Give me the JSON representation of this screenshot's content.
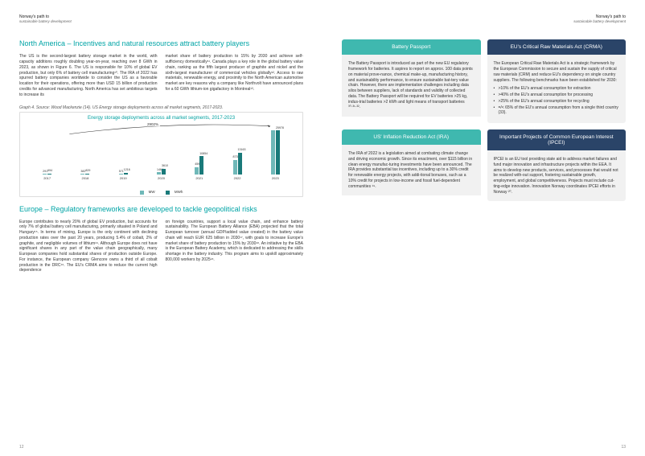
{
  "header": {
    "line1": "Norway's path to",
    "line2": "sustainable battery development"
  },
  "left": {
    "h_na": "North America – Incentives and natural resources attract battery players",
    "na_col1": "The US is the second-largest battery storage market in the world, with capacity additions roughly doubling year-on-year, reaching over 8 GWh in 2023, as shown in Figure 6. The US is responsible for 10% of global EV production, but only 6% of battery cell manufacturing¹⁰. The IRA of 2022 has spurred battery companies worldwide to consider the US as a favorable location for their operations, offering more than USD 15 billion of production credits for advanced manufacturing. North America has set ambitious targets to increase its",
    "na_col2": "market share of battery production to 15% by 2030 and achieve self-sufficiency domestically¹¹. Canada plays a key role in the global battery value chain, ranking as the fifth largest producer of graphite and nickel and the sixth-largest manufacturer of commercial vehicles globally¹². Access to raw materials, renewable energy, and proximity to the North American automotive market are key reasons why a company like Northvolt have announced plans for a 60 GWh lithium-ion gigafactory in Montreal¹³.",
    "caption": "Graph 4. Source: Wood Mackenzie (14). US Energy storage deployments across all market segments, 2017-2023.",
    "chart": {
      "title": "Energy storage deployments across all market segments, 2017-2023",
      "growth": "2902%",
      "years": [
        "2017",
        "2018",
        "2019",
        "2020",
        "2021",
        "2022",
        "2023"
      ],
      "mw": [
        291,
        382,
        571,
        1464,
        4599,
        8735,
        25978
      ],
      "mwh": [
        694,
        829,
        1216,
        3610,
        10854,
        13163,
        25978
      ],
      "labels_mw": [
        "291",
        "382",
        "571",
        "1464",
        "4599",
        "8735",
        ""
      ],
      "labels_mwh": [
        "694",
        "829",
        "1216",
        "3610",
        "10854",
        "13163",
        "25978"
      ],
      "color_mw": "#6fb8b8",
      "color_mwh": "#1a7a7a",
      "max": 26000,
      "legend_mw": "MW",
      "legend_mwh": "MWh"
    },
    "h_eu": "Europe – Regulatory frameworks are developed to tackle geopolitical risks",
    "eu_col1": "Europe contributes to nearly 20% of global EV production, but accounts for only 7% of global battery cell manufacturing, primarily situated in Poland and Hungary¹⁵. In terms of mining, Europe is the only continent with declining production rates over the past 20 years, producing 5.4% of cobalt, 2% of graphite, and negligible volumes of lithium¹⁶. Although Europe does not have significant shares in any part of the value chain geographically, many European companies hold substantial shares of production outside Europe. For instance, the European company Glencore owns a third of all cobalt production in the DRC¹⁶. The EU's CRMA aims to reduce the current high dependence",
    "eu_col2": "on foreign countries, support a local value chain, and enhance battery sustainability. The European Battery Alliance (EBA) projected that the total European turnover (annual GDP/added value created) in the battery value chain will reach EUR 625 billion in 2030¹⁷, with goals to increase Europe's market share of battery production to 15% by 2030¹⁸. An initiative by the EBA is the European Battery Academy, which is dedicated to addressing the skills shortage in the battery industry. This program aims to upskill approximately 800,000 workers by 2025¹⁸.",
    "page_num": "12"
  },
  "right": {
    "cards": [
      {
        "style": "teal",
        "title": "Battery Passport",
        "body": "The Battery Passport is introduced as part of the new EU regulatory framework for batteries. It aspires to report on approx. 100 data points on material prove-nance, chemical make-up, manufacturing history, and sustainability performance, to ensure sustainable bat-tery value chain. However, there are implementation challenges including data silos between suppliers, lack of standards and validity of collected data. The Battery Passport will be required for EV batteries >25 kg, indus-trial batteries >2 kWh and light means of transport batteries ³⁰·³¹·³².",
        "bullets": []
      },
      {
        "style": "navy",
        "title": "EU's Critical Raw Materials Act (CRMA)",
        "body": "The European Critical Raw Materials Act is a strategic framework by the European Commission to secure and sustain the supply of critical raw materials (CRM) and reduce EU's dependency on single country suppliers. The following benchmarks have been established for 2030:",
        "bullets": [
          ">10% of the EU's annual consumption for extraction",
          ">40% of the EU's annual consumption for processing",
          ">25% of the EU's annual consumption for recycling",
          "=/< 65% of the EU's annual consumption from a single third country (33)."
        ]
      },
      {
        "style": "teal",
        "title": "US' Inflation Reduction Act (IRA)",
        "body": "The IRA of 2022 is a legislation aimed at combating climate change and driving economic growth. Since its enactment, over $115 billion in clean energy manufac-turing investments have been announced. The IRA provides substantial tax incentives, including up to a 30% credit for renewable energy projects, with addi-tional bonuses, such as a 10% credit for projects in low-income and fossil fuel-dependent communities ¹⁹.",
        "bullets": []
      },
      {
        "style": "navy",
        "title": "Important Projects of Common European Interest (IPCEI)",
        "body": "IPCEI is an EU tool providing state aid to address market failures and fund major innovation and infrastructure projects within the EEA. It aims to develop new products, services, and processes that would not be realized with-out support, fostering sustainable growth, employment, and global competitiveness. Projects must include cut-ting-edge innovation. Innovation Norway coordinates IPCEI efforts in Norway ²⁰.",
        "bullets": []
      }
    ],
    "page_num": "13"
  }
}
